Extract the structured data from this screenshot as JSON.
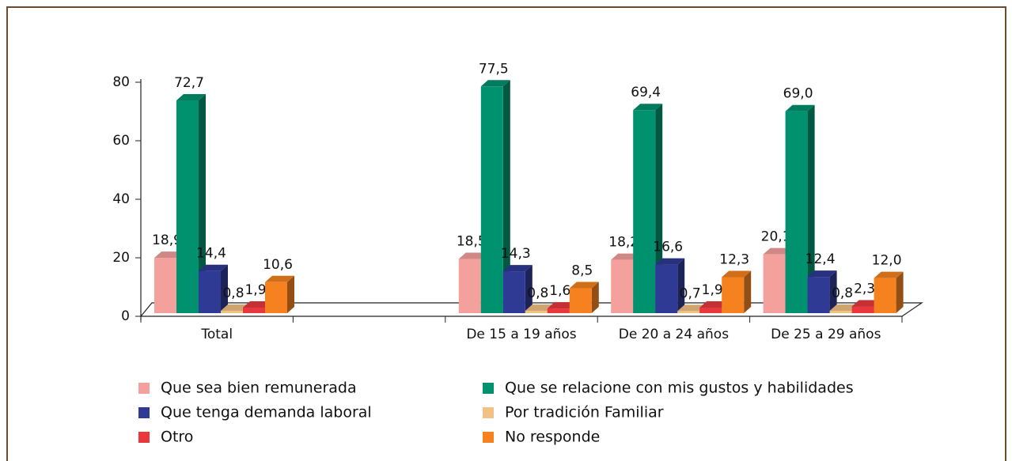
{
  "chart_data": {
    "type": "bar3d",
    "categories": [
      "Total",
      null,
      "De 15 a 19 años",
      "De 20 a 24 años",
      "De 25 a 29 años"
    ],
    "ylim": [
      0,
      80
    ],
    "yticks": [
      0,
      20,
      40,
      60,
      80
    ],
    "series": [
      {
        "name": "Que sea bien remunerada",
        "color": "#f4a09c",
        "values": [
          18.9,
          null,
          18.5,
          18.2,
          20.1
        ],
        "value_labels": [
          "18,9",
          null,
          "18,5",
          "18,2",
          "20,1"
        ]
      },
      {
        "name": "Que se relacione con mis gustos y habilidades",
        "color": "#00916e",
        "values": [
          72.7,
          null,
          77.5,
          69.4,
          69.0
        ],
        "value_labels": [
          "72,7",
          null,
          "77,5",
          "69,4",
          "69,0"
        ]
      },
      {
        "name": "Que tenga demanda laboral",
        "color": "#2e3a94",
        "values": [
          14.4,
          null,
          14.3,
          16.6,
          12.4
        ],
        "value_labels": [
          "14,4",
          null,
          "14,3",
          "16,6",
          "12,4"
        ]
      },
      {
        "name": "Por tradición Familiar",
        "color": "#f2c184",
        "values": [
          0.8,
          null,
          0.8,
          0.7,
          0.8
        ],
        "value_labels": [
          "0,8",
          null,
          "0,8",
          "0,7",
          "0,8"
        ]
      },
      {
        "name": "Otro",
        "color": "#e8383d",
        "values": [
          1.9,
          null,
          1.6,
          1.9,
          2.3
        ],
        "value_labels": [
          "1,9",
          null,
          "1,6",
          "1,9",
          "2,3"
        ]
      },
      {
        "name": "No responde",
        "color": "#f5821f",
        "values": [
          10.6,
          null,
          8.5,
          12.3,
          12.0
        ],
        "value_labels": [
          "10,6",
          null,
          "8,5",
          "12,3",
          "12,0"
        ]
      }
    ]
  }
}
